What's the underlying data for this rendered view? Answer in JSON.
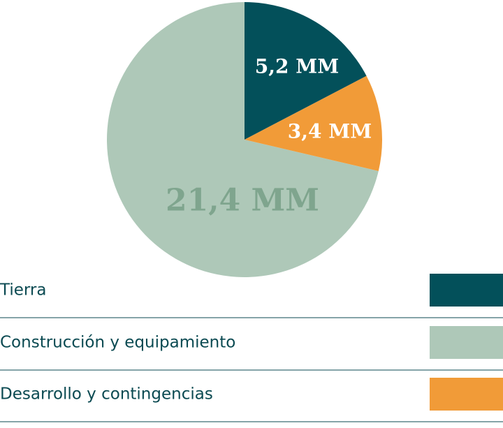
{
  "chart_data": {
    "type": "pie",
    "categories": [
      "Tierra",
      "Construcción y equipamiento",
      "Desarrollo y contingencias"
    ],
    "values": [
      5.2,
      21.4,
      3.4
    ],
    "value_labels": [
      "5,2 MM",
      "21,4 MM",
      "3,4 MM"
    ],
    "colors": [
      "#03505a",
      "#aec8b8",
      "#f19b38"
    ]
  }
}
